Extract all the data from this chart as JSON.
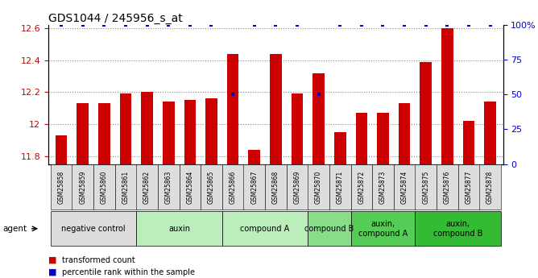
{
  "title": "GDS1044 / 245956_s_at",
  "samples": [
    "GSM25858",
    "GSM25859",
    "GSM25860",
    "GSM25861",
    "GSM25862",
    "GSM25863",
    "GSM25864",
    "GSM25865",
    "GSM25866",
    "GSM25867",
    "GSM25868",
    "GSM25869",
    "GSM25870",
    "GSM25871",
    "GSM25872",
    "GSM25873",
    "GSM25874",
    "GSM25875",
    "GSM25876",
    "GSM25877",
    "GSM25878"
  ],
  "transformed_count": [
    11.93,
    12.13,
    12.13,
    12.19,
    12.2,
    12.14,
    12.15,
    12.16,
    12.44,
    11.84,
    12.44,
    12.19,
    12.32,
    11.95,
    12.07,
    12.07,
    12.13,
    12.39,
    12.6,
    12.02,
    12.14
  ],
  "percentile_rank": [
    100,
    100,
    100,
    100,
    100,
    100,
    100,
    100,
    50,
    100,
    100,
    100,
    50,
    100,
    100,
    100,
    100,
    100,
    100,
    100,
    100
  ],
  "ylim_left": [
    11.75,
    12.62
  ],
  "ylim_right": [
    0,
    100
  ],
  "yticks_left": [
    11.8,
    12.0,
    12.2,
    12.4,
    12.6
  ],
  "ytick_labels_left": [
    "11.8",
    "12",
    "12.2",
    "12.4",
    "12.6"
  ],
  "yticks_right": [
    0,
    25,
    50,
    75,
    100
  ],
  "ytick_labels_right": [
    "0",
    "25",
    "50",
    "75",
    "100%"
  ],
  "bar_color": "#cc0000",
  "dot_color": "#0000cc",
  "groups": [
    {
      "label": "negative control",
      "start": 0,
      "end": 3,
      "color": "#dddddd"
    },
    {
      "label": "auxin",
      "start": 4,
      "end": 7,
      "color": "#bbeebb"
    },
    {
      "label": "compound A",
      "start": 8,
      "end": 11,
      "color": "#bbeebb"
    },
    {
      "label": "compound B",
      "start": 12,
      "end": 13,
      "color": "#88dd88"
    },
    {
      "label": "auxin,\ncompound A",
      "start": 14,
      "end": 16,
      "color": "#55cc55"
    },
    {
      "label": "auxin,\ncompound B",
      "start": 17,
      "end": 20,
      "color": "#33bb33"
    }
  ],
  "legend_bar_label": "transformed count",
  "legend_dot_label": "percentile rank within the sample",
  "agent_label": "agent",
  "background_color": "#ffffff",
  "grid_color": "#888888",
  "title_fontsize": 10,
  "tick_fontsize": 6.5,
  "bar_width": 0.55
}
